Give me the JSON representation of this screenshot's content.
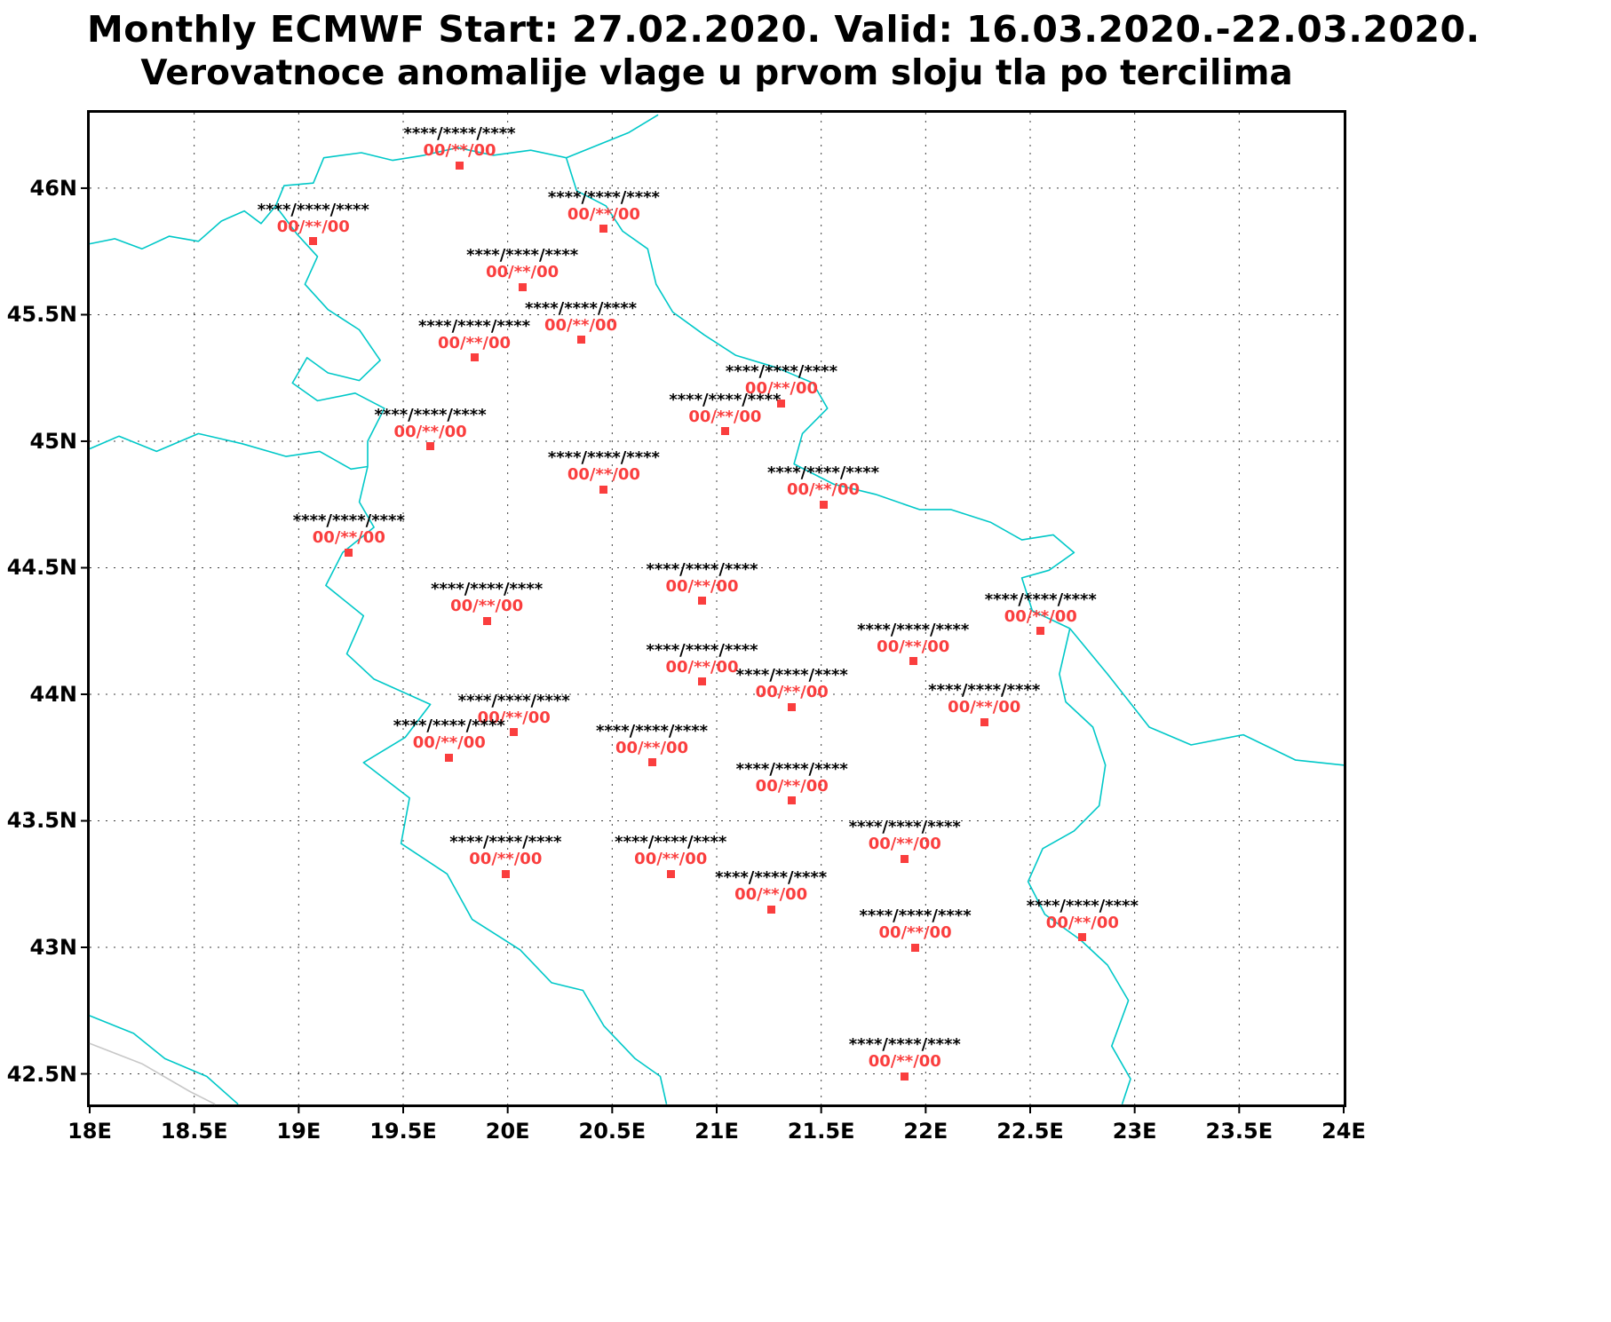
{
  "title": {
    "line1": "Monthly ECMWF Start: 27.02.2020. Valid: 16.03.2020.-22.03.2020.",
    "line2": "Verovatnoce anomalije vlage u prvom sloju tla po tercilima"
  },
  "colors": {
    "coastline": "#00c8c8",
    "station": "#fa3e3e",
    "grid": "#3c3c3c",
    "frame": "#000000"
  },
  "chart_data": {
    "type": "scatter",
    "projection": "lonlat",
    "grid": "dotted",
    "lon_range": [
      18,
      24
    ],
    "lat_range": [
      42.379,
      46.298
    ],
    "x_ticks": [
      {
        "lon": 18,
        "label": "18E"
      },
      {
        "lon": 18.5,
        "label": "18.5E"
      },
      {
        "lon": 19,
        "label": "19E"
      },
      {
        "lon": 19.5,
        "label": "19.5E"
      },
      {
        "lon": 20,
        "label": "20E"
      },
      {
        "lon": 20.5,
        "label": "20.5E"
      },
      {
        "lon": 21,
        "label": "21E"
      },
      {
        "lon": 21.5,
        "label": "21.5E"
      },
      {
        "lon": 22,
        "label": "22E"
      },
      {
        "lon": 22.5,
        "label": "22.5E"
      },
      {
        "lon": 23,
        "label": "23E"
      },
      {
        "lon": 23.5,
        "label": "23.5E"
      },
      {
        "lon": 24,
        "label": "24E"
      }
    ],
    "y_ticks": [
      {
        "lat": 46,
        "label": "46N"
      },
      {
        "lat": 45.5,
        "label": "45.5N"
      },
      {
        "lat": 45,
        "label": "45N"
      },
      {
        "lat": 44.5,
        "label": "44.5N"
      },
      {
        "lat": 44,
        "label": "44N"
      },
      {
        "lat": 43.5,
        "label": "43.5N"
      },
      {
        "lat": 43,
        "label": "43N"
      },
      {
        "lat": 42.5,
        "label": "42.5N"
      }
    ],
    "station_upper_label": "****/****/****",
    "station_lower_label": "00/**/00",
    "stations": [
      [
        19.77,
        46.09
      ],
      [
        20.46,
        45.84
      ],
      [
        19.07,
        45.79
      ],
      [
        20.07,
        45.61
      ],
      [
        20.35,
        45.4
      ],
      [
        19.84,
        45.33
      ],
      [
        21.31,
        45.15
      ],
      [
        21.04,
        45.04
      ],
      [
        19.63,
        44.98
      ],
      [
        20.46,
        44.81
      ],
      [
        21.51,
        44.75
      ],
      [
        19.24,
        44.56
      ],
      [
        20.93,
        44.37
      ],
      [
        19.9,
        44.29
      ],
      [
        22.55,
        44.25
      ],
      [
        21.94,
        44.13
      ],
      [
        20.93,
        44.05
      ],
      [
        21.36,
        43.95
      ],
      [
        22.28,
        43.89
      ],
      [
        20.03,
        43.85
      ],
      [
        19.72,
        43.75
      ],
      [
        20.69,
        43.73
      ],
      [
        21.36,
        43.58
      ],
      [
        21.9,
        43.35
      ],
      [
        19.99,
        43.29
      ],
      [
        20.78,
        43.29
      ],
      [
        21.26,
        43.15
      ],
      [
        21.95,
        43.0
      ],
      [
        22.75,
        43.04
      ],
      [
        21.9,
        42.49
      ]
    ]
  },
  "map": {
    "borders": [
      {
        "name": "hungary-north",
        "points": [
          [
            18.0,
            45.78
          ],
          [
            18.12,
            45.8
          ],
          [
            18.25,
            45.76
          ],
          [
            18.38,
            45.81
          ],
          [
            18.52,
            45.79
          ],
          [
            18.63,
            45.87
          ],
          [
            18.74,
            45.91
          ],
          [
            18.82,
            45.86
          ],
          [
            18.89,
            45.93
          ],
          [
            18.93,
            46.01
          ],
          [
            19.07,
            46.02
          ],
          [
            19.12,
            46.12
          ],
          [
            19.3,
            46.14
          ],
          [
            19.45,
            46.11
          ],
          [
            19.6,
            46.13
          ],
          [
            19.76,
            46.16
          ],
          [
            19.93,
            46.13
          ],
          [
            20.11,
            46.15
          ],
          [
            20.28,
            46.12
          ]
        ]
      },
      {
        "name": "hungary-romania",
        "points": [
          [
            20.28,
            46.12
          ],
          [
            20.43,
            46.17
          ],
          [
            20.58,
            46.22
          ],
          [
            20.72,
            46.29
          ]
        ]
      },
      {
        "name": "serbia-romania-danube",
        "points": [
          [
            20.28,
            46.12
          ],
          [
            20.33,
            45.99
          ],
          [
            20.47,
            45.93
          ],
          [
            20.55,
            45.83
          ],
          [
            20.67,
            45.76
          ],
          [
            20.71,
            45.62
          ],
          [
            20.79,
            45.51
          ],
          [
            20.94,
            45.42
          ],
          [
            21.09,
            45.34
          ],
          [
            21.29,
            45.29
          ],
          [
            21.46,
            45.23
          ],
          [
            21.53,
            45.13
          ],
          [
            21.41,
            45.03
          ],
          [
            21.37,
            44.91
          ],
          [
            21.56,
            44.83
          ],
          [
            21.76,
            44.79
          ],
          [
            21.97,
            44.73
          ],
          [
            22.12,
            44.73
          ],
          [
            22.31,
            44.68
          ],
          [
            22.46,
            44.61
          ],
          [
            22.61,
            44.63
          ],
          [
            22.71,
            44.56
          ],
          [
            22.59,
            44.49
          ],
          [
            22.46,
            44.46
          ],
          [
            22.51,
            44.33
          ],
          [
            22.69,
            44.26
          ]
        ]
      },
      {
        "name": "danube-east",
        "points": [
          [
            22.69,
            44.26
          ],
          [
            22.87,
            44.08
          ],
          [
            23.07,
            43.87
          ],
          [
            23.27,
            43.8
          ],
          [
            23.52,
            43.84
          ],
          [
            23.77,
            43.74
          ],
          [
            24.0,
            43.72
          ]
        ]
      },
      {
        "name": "serbia-bulgaria",
        "points": [
          [
            22.69,
            44.26
          ],
          [
            22.64,
            44.08
          ],
          [
            22.67,
            43.97
          ],
          [
            22.8,
            43.87
          ],
          [
            22.86,
            43.72
          ],
          [
            22.83,
            43.56
          ],
          [
            22.71,
            43.46
          ],
          [
            22.56,
            43.39
          ],
          [
            22.49,
            43.26
          ],
          [
            22.57,
            43.13
          ],
          [
            22.74,
            43.03
          ],
          [
            22.87,
            42.93
          ],
          [
            22.97,
            42.79
          ],
          [
            22.89,
            42.61
          ],
          [
            22.98,
            42.48
          ],
          [
            22.94,
            42.38
          ]
        ]
      },
      {
        "name": "sava-croatia-bosnia",
        "points": [
          [
            18.0,
            44.97
          ],
          [
            18.14,
            45.02
          ],
          [
            18.32,
            44.96
          ],
          [
            18.52,
            45.03
          ],
          [
            18.73,
            44.99
          ],
          [
            18.94,
            44.94
          ],
          [
            19.1,
            44.96
          ],
          [
            19.25,
            44.89
          ],
          [
            19.33,
            44.9
          ]
        ]
      },
      {
        "name": "croatia-serbia-danube",
        "points": [
          [
            18.89,
            45.93
          ],
          [
            18.99,
            45.82
          ],
          [
            19.09,
            45.73
          ],
          [
            19.03,
            45.62
          ],
          [
            19.14,
            45.52
          ],
          [
            19.29,
            45.44
          ],
          [
            19.39,
            45.32
          ],
          [
            19.29,
            45.24
          ],
          [
            19.14,
            45.27
          ],
          [
            19.04,
            45.33
          ],
          [
            18.97,
            45.23
          ],
          [
            19.09,
            45.16
          ],
          [
            19.27,
            45.19
          ],
          [
            19.41,
            45.13
          ],
          [
            19.33,
            45.0
          ],
          [
            19.33,
            44.9
          ]
        ]
      },
      {
        "name": "drina-west-border",
        "points": [
          [
            19.33,
            44.9
          ],
          [
            19.29,
            44.76
          ],
          [
            19.36,
            44.66
          ],
          [
            19.21,
            44.56
          ],
          [
            19.13,
            44.43
          ],
          [
            19.31,
            44.31
          ],
          [
            19.23,
            44.16
          ],
          [
            19.36,
            44.06
          ],
          [
            19.63,
            43.96
          ],
          [
            19.51,
            43.83
          ],
          [
            19.31,
            43.73
          ],
          [
            19.53,
            43.59
          ],
          [
            19.49,
            43.41
          ],
          [
            19.71,
            43.29
          ],
          [
            19.83,
            43.11
          ],
          [
            20.06,
            42.99
          ],
          [
            20.21,
            42.86
          ],
          [
            20.36,
            42.83
          ],
          [
            20.46,
            42.69
          ],
          [
            20.61,
            42.56
          ],
          [
            20.73,
            42.49
          ],
          [
            20.76,
            42.38
          ]
        ]
      },
      {
        "name": "adriatic-southwest",
        "points": [
          [
            18.0,
            42.73
          ],
          [
            18.21,
            42.66
          ],
          [
            18.36,
            42.56
          ],
          [
            18.56,
            42.49
          ],
          [
            18.71,
            42.38
          ]
        ]
      },
      {
        "name": "faint-coast",
        "color": "#c8c8c8",
        "points": [
          [
            18.0,
            42.62
          ],
          [
            18.25,
            42.54
          ],
          [
            18.48,
            42.43
          ],
          [
            18.6,
            42.38
          ]
        ]
      }
    ]
  }
}
